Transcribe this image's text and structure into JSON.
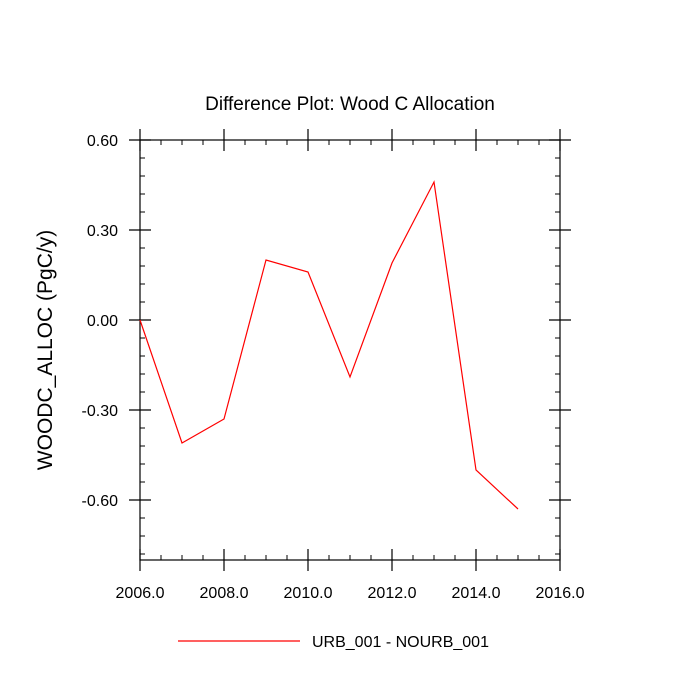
{
  "chart_data": {
    "type": "line",
    "title": "Difference Plot: Wood C Allocation",
    "xlabel": "",
    "ylabel": "WOODC_ALLOC  (PgC/y)",
    "xlim": [
      2006,
      2016
    ],
    "ylim": [
      -0.8,
      0.6
    ],
    "x_ticks": [
      2006,
      2008,
      2010,
      2012,
      2014,
      2016
    ],
    "x_tick_labels": [
      "2006.0",
      "2008.0",
      "2010.0",
      "2012.0",
      "2014.0",
      "2016.0"
    ],
    "y_ticks": [
      0.6,
      0.3,
      0.0,
      -0.3,
      -0.6
    ],
    "y_tick_labels": [
      "0.60",
      "0.30",
      "0.00",
      "-0.30",
      "-0.60"
    ],
    "grid": false,
    "legend_position": "bottom",
    "series": [
      {
        "name": "URB_001 - NOURB_001",
        "color": "#ff0000",
        "x": [
          2006,
          2007,
          2008,
          2009,
          2010,
          2011,
          2012,
          2013,
          2014,
          2015
        ],
        "y": [
          0.0,
          -0.41,
          -0.33,
          0.2,
          0.16,
          -0.19,
          0.19,
          0.46,
          -0.5,
          -0.63
        ]
      }
    ]
  }
}
